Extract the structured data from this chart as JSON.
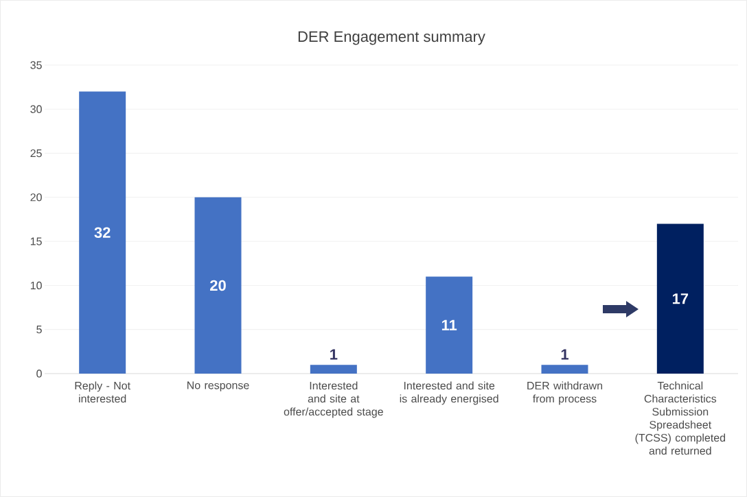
{
  "chart_data": {
    "type": "bar",
    "title": "DER Engagement summary",
    "categories": [
      "Reply - Not interested",
      "No response",
      "Interested and site at offer/accepted stage",
      "Interested and site is already energised",
      "DER withdrawn from process",
      "Technical Characteristics Submission Spreadsheet (TCSS) completed and returned"
    ],
    "values": [
      32,
      20,
      1,
      11,
      1,
      17
    ],
    "colors": [
      "#4472c4",
      "#4472c4",
      "#4472c4",
      "#4472c4",
      "#4472c4",
      "#002060"
    ],
    "ylim": [
      0,
      35
    ],
    "yticks": [
      0,
      5,
      10,
      15,
      20,
      25,
      30,
      35
    ],
    "grid": "y",
    "data_labels": true
  }
}
